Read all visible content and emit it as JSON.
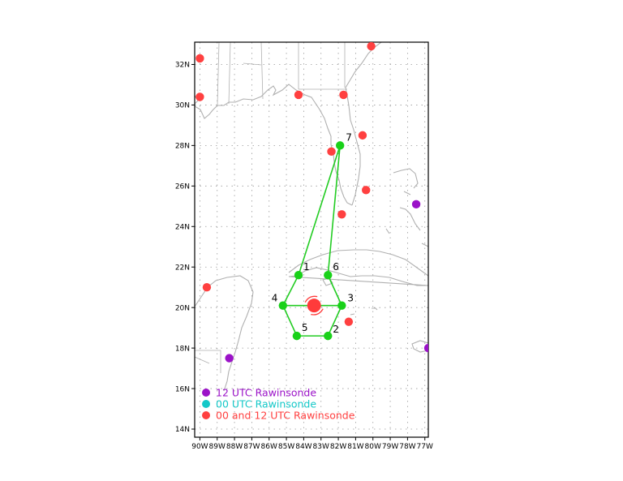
{
  "map": {
    "lon_range": [
      -90.3,
      -76.8
    ],
    "lat_range": [
      13.6,
      33.1
    ],
    "colors": {
      "land_outline": "#b0b0b0",
      "grid": "#9a9a9a",
      "frame": "#000000",
      "track": "#22cc22",
      "drop_point": "#19d119",
      "center": "#ff3b3b",
      "rawinsonde_12": "#9b12c8",
      "rawinsonde_00": "#14c8c8",
      "rawinsonde_00_12": "#ff4040"
    },
    "lat_ticks": [
      {
        "value": 14,
        "label": "14N"
      },
      {
        "value": 16,
        "label": "16N"
      },
      {
        "value": 18,
        "label": "18N"
      },
      {
        "value": 20,
        "label": "20N"
      },
      {
        "value": 22,
        "label": "22N"
      },
      {
        "value": 24,
        "label": "24N"
      },
      {
        "value": 26,
        "label": "26N"
      },
      {
        "value": 28,
        "label": "28N"
      },
      {
        "value": 30,
        "label": "30N"
      },
      {
        "value": 32,
        "label": "32N"
      }
    ],
    "lon_ticks": [
      {
        "value": -90,
        "label": "90W"
      },
      {
        "value": -89,
        "label": "89W"
      },
      {
        "value": -88,
        "label": "88W"
      },
      {
        "value": -87,
        "label": "87W"
      },
      {
        "value": -86,
        "label": "86W"
      },
      {
        "value": -85,
        "label": "85W"
      },
      {
        "value": -84,
        "label": "84W"
      },
      {
        "value": -83,
        "label": "83W"
      },
      {
        "value": -82,
        "label": "82W"
      },
      {
        "value": -81,
        "label": "81W"
      },
      {
        "value": -80,
        "label": "80W"
      },
      {
        "value": -79,
        "label": "79W"
      },
      {
        "value": -78,
        "label": "78W"
      },
      {
        "value": -77,
        "label": "77W"
      }
    ],
    "storm_center": {
      "lon": -83.4,
      "lat": 20.1
    },
    "drop_points": [
      {
        "label": "1",
        "lon": -84.3,
        "lat": 21.6
      },
      {
        "label": "2",
        "lon": -82.6,
        "lat": 18.6
      },
      {
        "label": "3",
        "lon": -81.8,
        "lat": 20.1
      },
      {
        "label": "4",
        "lon": -85.2,
        "lat": 20.1
      },
      {
        "label": "5",
        "lon": -84.4,
        "lat": 18.6
      },
      {
        "label": "6",
        "lon": -82.6,
        "lat": 21.6
      },
      {
        "label": "7",
        "lon": -81.9,
        "lat": 28.0
      }
    ],
    "track_order": [
      "7",
      "1",
      "4",
      "5",
      "2",
      "3",
      "6",
      "7"
    ],
    "rawinsondes_00_12": [
      {
        "lon": -90.0,
        "lat": 32.3
      },
      {
        "lon": -90.0,
        "lat": 30.4
      },
      {
        "lon": -84.3,
        "lat": 30.5
      },
      {
        "lon": -81.7,
        "lat": 30.5
      },
      {
        "lon": -80.1,
        "lat": 32.9
      },
      {
        "lon": -80.6,
        "lat": 28.5
      },
      {
        "lon": -82.4,
        "lat": 27.7
      },
      {
        "lon": -80.4,
        "lat": 25.8
      },
      {
        "lon": -81.8,
        "lat": 24.6
      },
      {
        "lon": -89.6,
        "lat": 21.0
      },
      {
        "lon": -81.4,
        "lat": 19.3
      }
    ],
    "rawinsondes_12": [
      {
        "lon": -77.5,
        "lat": 25.1
      },
      {
        "lon": -76.8,
        "lat": 18.0
      },
      {
        "lon": -88.3,
        "lat": 17.5
      }
    ]
  },
  "legend": {
    "items": [
      {
        "label": "12 UTC Rawinsonde",
        "color": "#9b12c8"
      },
      {
        "label": "00 UTC Rawinsonde",
        "color": "#14c8c8"
      },
      {
        "label": "00 and 12 UTC Rawinsonde",
        "color": "#ff4040"
      }
    ]
  }
}
